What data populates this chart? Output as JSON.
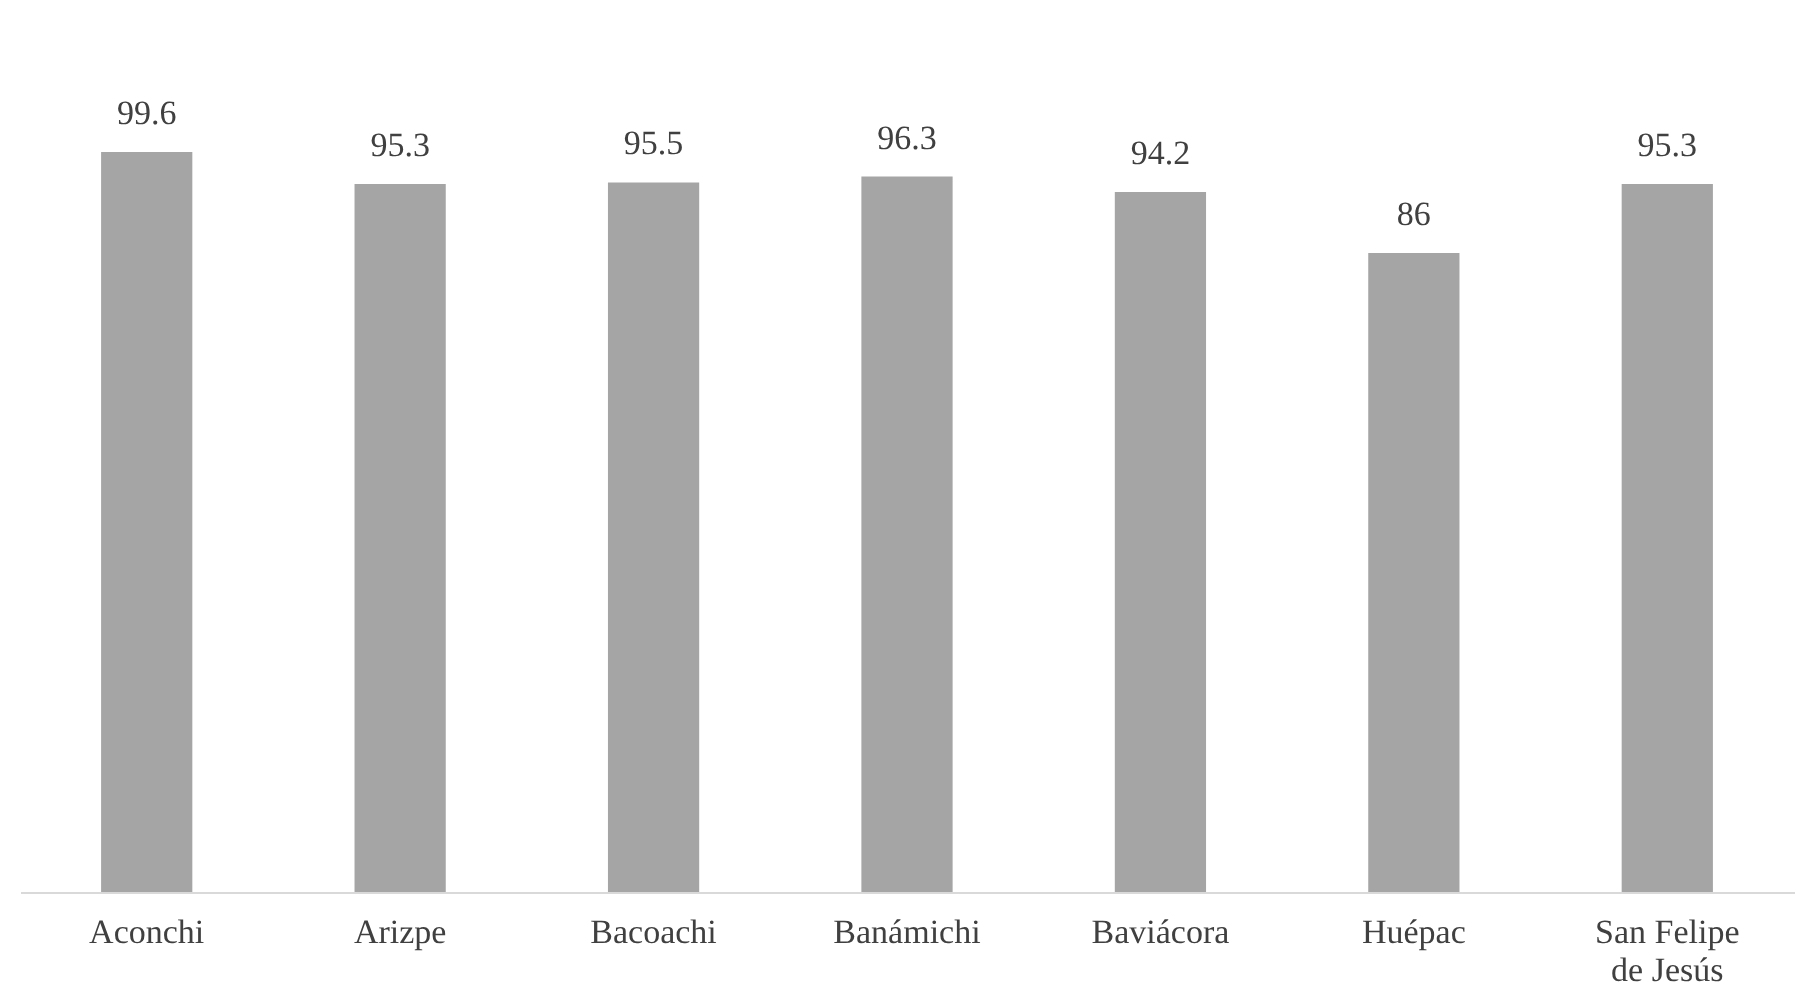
{
  "chart_data": {
    "type": "bar",
    "categories": [
      "Aconchi",
      "Arizpe",
      "Bacoachi",
      "Banámichi",
      "Baviácora",
      "Huépac",
      "San Felipe de Jesús"
    ],
    "values": [
      99.6,
      95.3,
      95.5,
      96.3,
      94.2,
      86,
      95.3
    ],
    "color": "#a5a5a5",
    "data_labels": true,
    "tick_labels": "x"
  }
}
